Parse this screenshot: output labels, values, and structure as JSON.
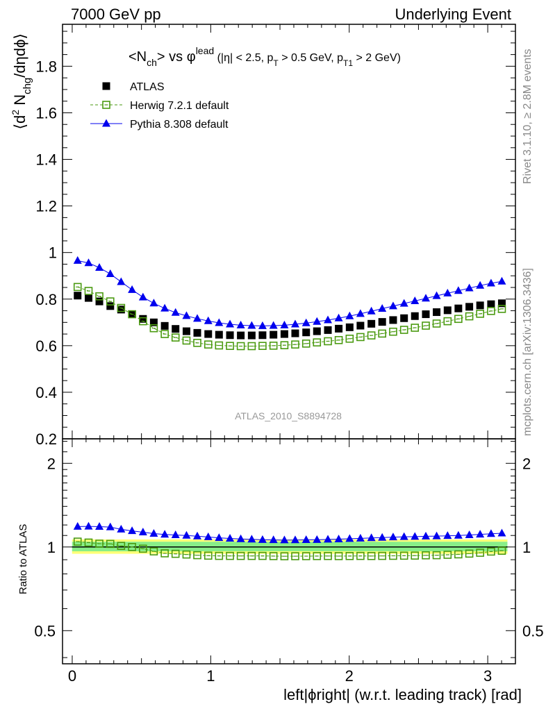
{
  "header": {
    "left": "7000 GeV pp",
    "right": "Underlying Event"
  },
  "side": {
    "rivet": "Rivet 3.1.10, ≥ 2.8M events",
    "mcplots": "mcplots.cern.ch [arXiv:1306.3436]"
  },
  "chart_data": {
    "type": "scatter",
    "title": "<N_ch> vs φ^lead (|η| < 2.5, p_T > 0.5 GeV, p_T1 > 2 GeV)",
    "title_parts": {
      "main": "<N",
      "main_sub": "ch",
      "vs": "> vs φ",
      "vs_sup": "lead",
      "cuts_a": " (|η| < 2.5, p",
      "cuts_sub1": "T",
      "cuts_b": " > 0.5 GeV, p",
      "cuts_sub2": "T1",
      "cuts_c": " > 2 GeV)"
    },
    "analysis_id": "ATLAS_2010_S8894728",
    "xlabel": "left|ϕright| (w.r.t. leading track) [rad]",
    "ylabel": "⟨d² N_chg/dηdϕ⟩",
    "ylabel_ratio": "Ratio to ATLAS",
    "xlim": [
      -0.07,
      3.2
    ],
    "ylim": [
      0.2,
      1.98
    ],
    "ratio_ylim": [
      0.38,
      2.45
    ],
    "ratio_scale": "log",
    "xticks": [
      0,
      1,
      2,
      3
    ],
    "yticks": [
      0.2,
      0.4,
      0.6,
      0.8,
      1,
      1.2,
      1.4,
      1.6,
      1.8
    ],
    "ratio_yticks": [
      0.5,
      1,
      2
    ],
    "legend_position": "top-left",
    "x": [
      0.039,
      0.118,
      0.196,
      0.275,
      0.353,
      0.432,
      0.511,
      0.589,
      0.668,
      0.746,
      0.825,
      0.903,
      0.982,
      1.06,
      1.139,
      1.217,
      1.296,
      1.374,
      1.453,
      1.532,
      1.61,
      1.689,
      1.767,
      1.846,
      1.924,
      2.003,
      2.081,
      2.16,
      2.238,
      2.317,
      2.396,
      2.474,
      2.553,
      2.631,
      2.71,
      2.788,
      2.867,
      2.945,
      3.024,
      3.102
    ],
    "series": [
      {
        "name": "ATLAS",
        "color": "#000000",
        "marker": "filled-square",
        "values": [
          0.815,
          0.805,
          0.79,
          0.77,
          0.755,
          0.735,
          0.715,
          0.7,
          0.685,
          0.672,
          0.662,
          0.655,
          0.65,
          0.647,
          0.645,
          0.644,
          0.644,
          0.645,
          0.647,
          0.65,
          0.653,
          0.657,
          0.662,
          0.667,
          0.673,
          0.679,
          0.686,
          0.694,
          0.702,
          0.71,
          0.718,
          0.727,
          0.735,
          0.744,
          0.752,
          0.76,
          0.767,
          0.773,
          0.778,
          0.782
        ]
      },
      {
        "name": "Herwig 7.2.1 default",
        "color": "#4a9a10",
        "marker": "open-square",
        "line": "dashed",
        "values": [
          0.852,
          0.835,
          0.812,
          0.79,
          0.762,
          0.735,
          0.705,
          0.675,
          0.65,
          0.635,
          0.622,
          0.612,
          0.605,
          0.601,
          0.599,
          0.598,
          0.598,
          0.599,
          0.6,
          0.602,
          0.605,
          0.609,
          0.614,
          0.619,
          0.624,
          0.63,
          0.637,
          0.644,
          0.652,
          0.66,
          0.668,
          0.677,
          0.686,
          0.695,
          0.705,
          0.715,
          0.726,
          0.737,
          0.749,
          0.758
        ]
      },
      {
        "name": "Pythia 8.308 default",
        "color": "#0000ee",
        "marker": "filled-triangle",
        "line": "solid",
        "values": [
          0.965,
          0.955,
          0.935,
          0.908,
          0.874,
          0.84,
          0.808,
          0.782,
          0.76,
          0.742,
          0.728,
          0.716,
          0.706,
          0.698,
          0.692,
          0.688,
          0.686,
          0.685,
          0.686,
          0.688,
          0.692,
          0.697,
          0.703,
          0.71,
          0.718,
          0.727,
          0.737,
          0.748,
          0.759,
          0.77,
          0.781,
          0.792,
          0.803,
          0.814,
          0.825,
          0.836,
          0.847,
          0.858,
          0.868,
          0.876
        ]
      }
    ],
    "band_colors": {
      "stat": "#ffff77",
      "total": "#88ee88"
    }
  }
}
